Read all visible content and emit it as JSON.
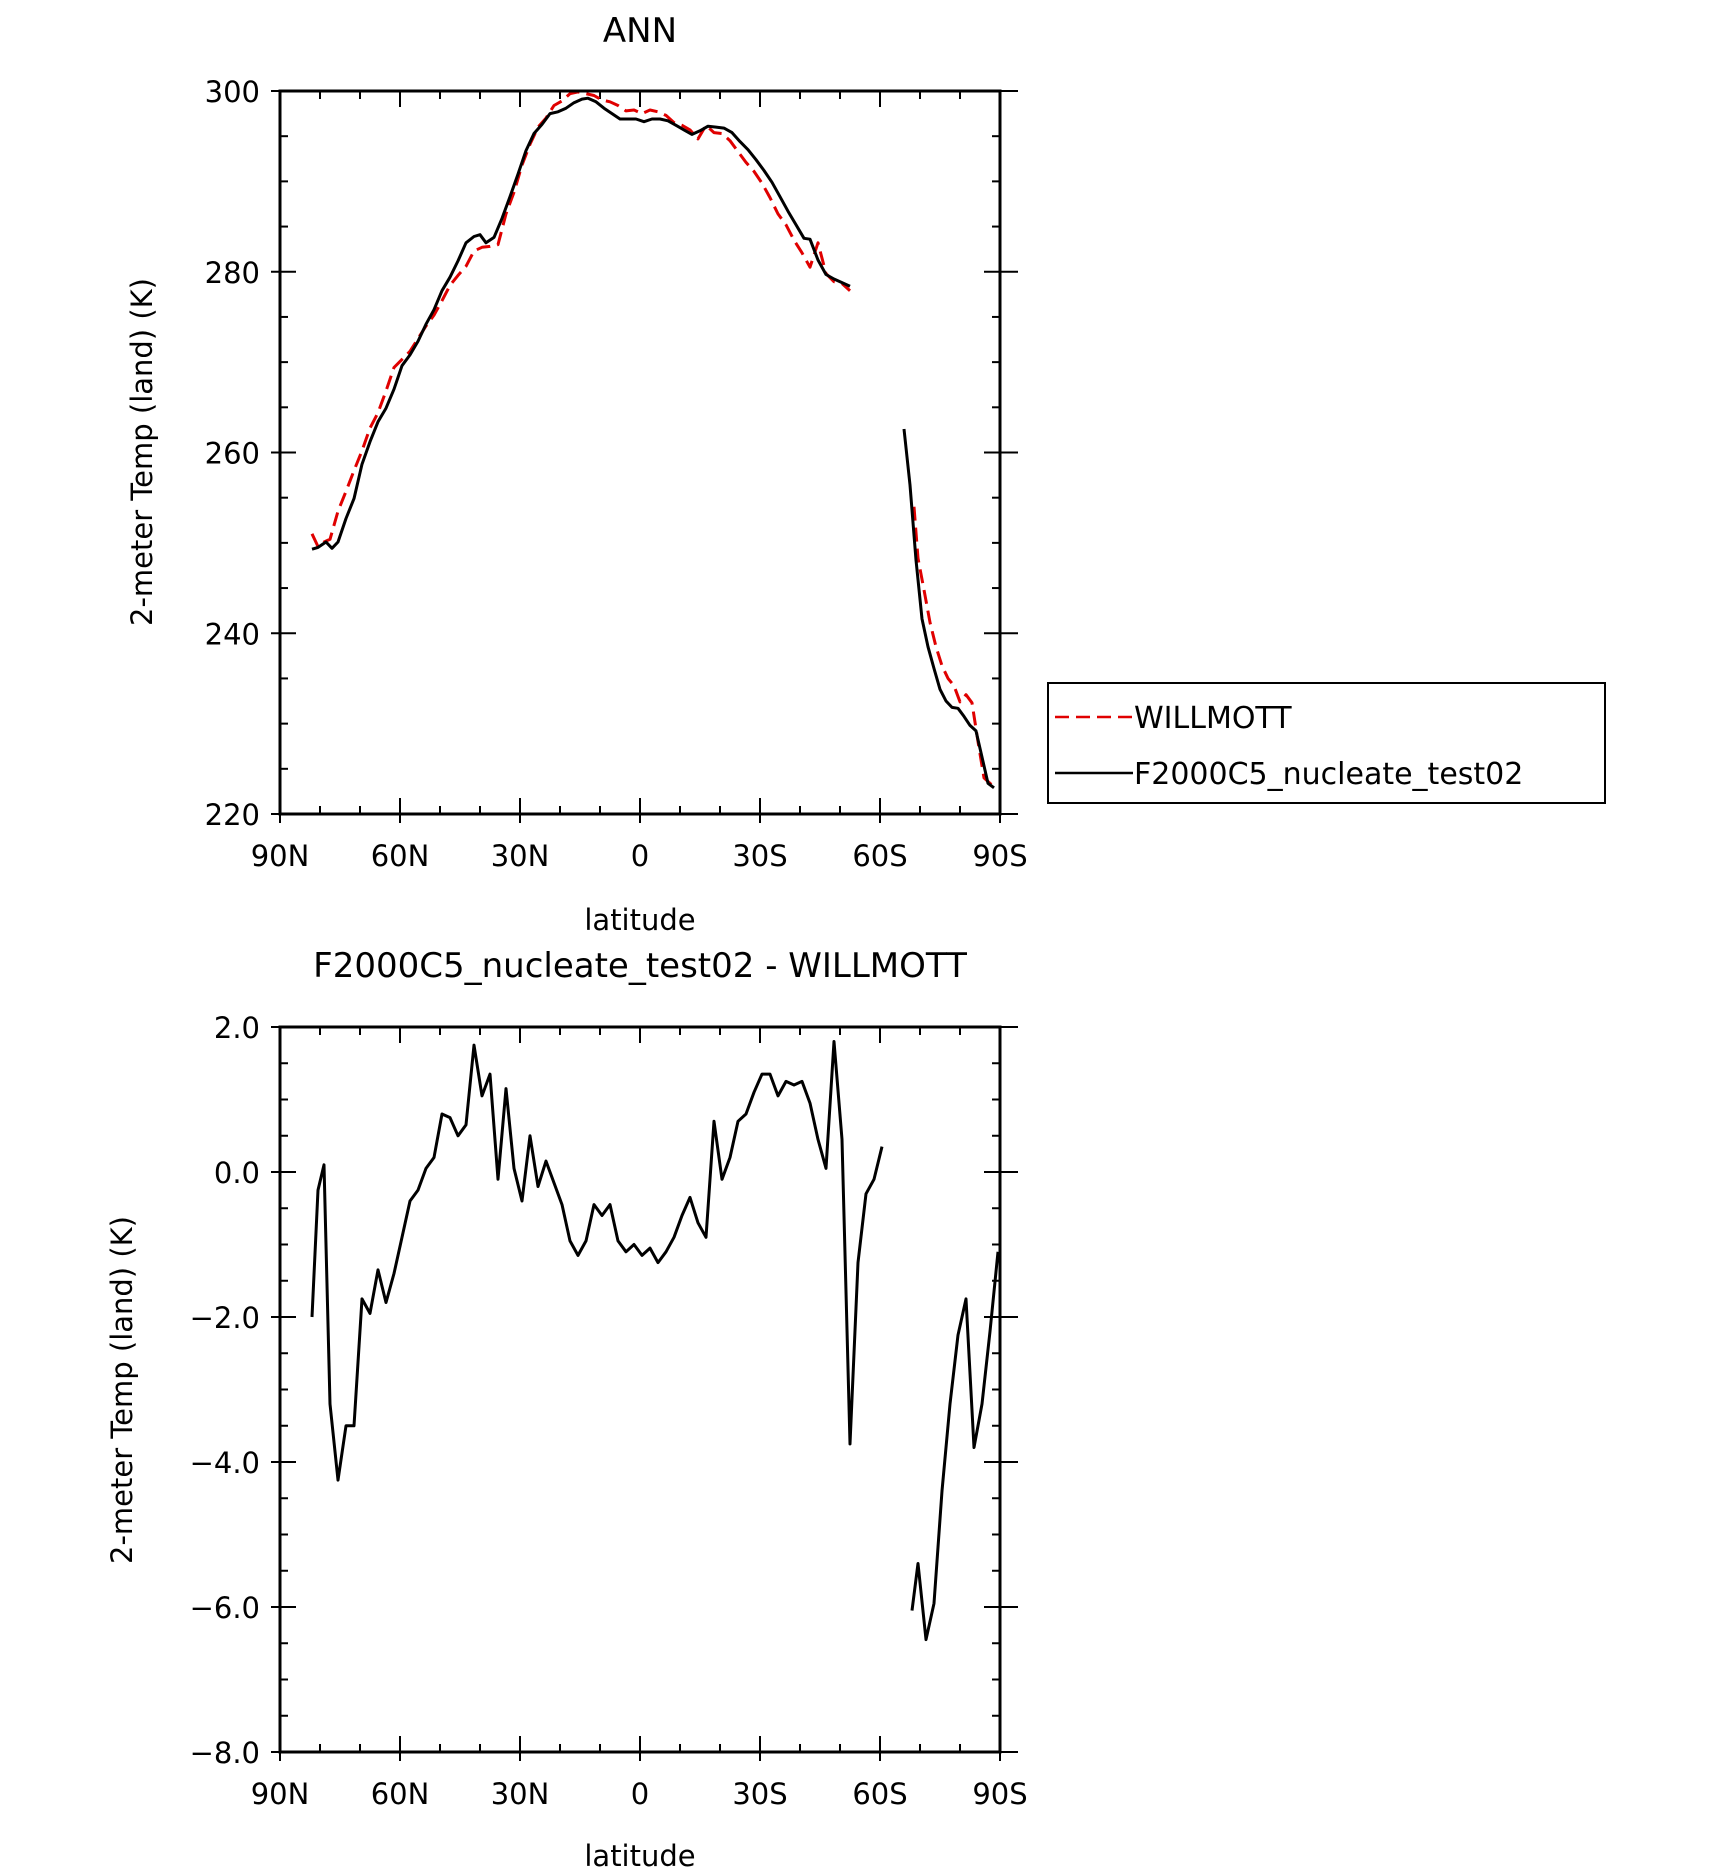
{
  "chart_data": [
    {
      "type": "line",
      "title": "ANN",
      "xlabel": "latitude",
      "ylabel": "2-meter Temp (land) (K)",
      "xlim": [
        90,
        -90
      ],
      "ylim": [
        220,
        300
      ],
      "x_ticks": [
        90,
        60,
        30,
        0,
        -30,
        -60,
        -90
      ],
      "x_tick_labels": [
        "90N",
        "60N",
        "30N",
        "0",
        "30S",
        "60S",
        "90S"
      ],
      "y_ticks": [
        220,
        240,
        260,
        280,
        300
      ],
      "y_tick_labels": [
        "220",
        "240",
        "260",
        "280",
        "300"
      ],
      "grid": false,
      "legend": "right",
      "series": [
        {
          "name": "WILLMOTT",
          "color": "#e00000",
          "style": "dashed",
          "points": [
            [
              82,
              251
            ],
            [
              80.5,
              249.6
            ],
            [
              79,
              250.1
            ],
            [
              77.5,
              250.4
            ],
            [
              75.5,
              253.5
            ],
            [
              73.5,
              255.7
            ],
            [
              71.5,
              258
            ],
            [
              69.5,
              260.2
            ],
            [
              67.5,
              262.7
            ],
            [
              65.5,
              264.4
            ],
            [
              63.5,
              266.8
            ],
            [
              61.5,
              269.4
            ],
            [
              59.5,
              270.3
            ],
            [
              57.5,
              271.2
            ],
            [
              55.5,
              272.6
            ],
            [
              53.5,
              274
            ],
            [
              51.5,
              275.2
            ],
            [
              49.5,
              276.8
            ],
            [
              47.5,
              278.5
            ],
            [
              45.5,
              279.6
            ],
            [
              43.5,
              280.6
            ],
            [
              41.5,
              282.3
            ],
            [
              39.5,
              282.7
            ],
            [
              37.5,
              282.8
            ],
            [
              35.5,
              283
            ],
            [
              33.5,
              286.4
            ],
            [
              31.5,
              288.8
            ],
            [
              29.5,
              291.8
            ],
            [
              27.5,
              294.1
            ],
            [
              25.5,
              296
            ],
            [
              23.5,
              297
            ],
            [
              21.5,
              298.4
            ],
            [
              19.5,
              298.9
            ],
            [
              17.5,
              299.7
            ],
            [
              15.5,
              299.9
            ],
            [
              13.5,
              299.7
            ],
            [
              11.5,
              299.5
            ],
            [
              9.5,
              299
            ],
            [
              7.5,
              298.8
            ],
            [
              5.5,
              298.4
            ],
            [
              3.5,
              297.8
            ],
            [
              1.5,
              297.9
            ],
            [
              -0.5,
              297.5
            ],
            [
              -2.5,
              297.9
            ],
            [
              -4.5,
              297.7
            ],
            [
              -6.5,
              297.3
            ],
            [
              -8.5,
              296.5
            ],
            [
              -10.5,
              296.2
            ],
            [
              -12.5,
              295.7
            ],
            [
              -14.5,
              294.7
            ],
            [
              -16.5,
              296.2
            ],
            [
              -18.5,
              295.4
            ],
            [
              -20.5,
              295.3
            ],
            [
              -22.5,
              294.5
            ],
            [
              -24.5,
              293.3
            ],
            [
              -26.5,
              292.1
            ],
            [
              -28.5,
              291.1
            ],
            [
              -30.5,
              289.8
            ],
            [
              -32.5,
              288.2
            ],
            [
              -34.5,
              286.4
            ],
            [
              -36.5,
              285.2
            ],
            [
              -38.5,
              283.5
            ],
            [
              -40.5,
              282.1
            ],
            [
              -42.5,
              280.5
            ],
            [
              -44.5,
              283.2
            ],
            [
              -46.5,
              279.8
            ],
            [
              -48.5,
              278.9
            ],
            [
              -50.5,
              278.7
            ],
            [
              -52.5,
              277.9
            ],
            null,
            [
              -68.5,
              254
            ],
            [
              -69.5,
              248.3
            ],
            [
              -71,
              244.8
            ],
            [
              -72.5,
              241.2
            ],
            [
              -74,
              238.5
            ],
            [
              -75.5,
              236.4
            ],
            [
              -77,
              235
            ],
            [
              -78.5,
              234.2
            ],
            [
              -80,
              232.4
            ],
            [
              -81.5,
              233.2
            ],
            [
              -83,
              232.3
            ],
            [
              -84.5,
              228
            ],
            [
              -86,
              224
            ],
            [
              -88,
              223.2
            ]
          ]
        },
        {
          "name": "F2000C5_nucleate_test02",
          "color": "#000000",
          "style": "solid",
          "points": [
            [
              82,
              249.3
            ],
            [
              80.5,
              249.5
            ],
            [
              78.5,
              250.1
            ],
            [
              77,
              249.4
            ],
            [
              75.5,
              250.1
            ],
            [
              73.5,
              252.7
            ],
            [
              71.5,
              254.9
            ],
            [
              69.5,
              258.7
            ],
            [
              67.5,
              261.2
            ],
            [
              65.5,
              263.4
            ],
            [
              63.5,
              264.9
            ],
            [
              61.5,
              267
            ],
            [
              59.5,
              269.6
            ],
            [
              57.5,
              270.8
            ],
            [
              55.5,
              272.3
            ],
            [
              53.5,
              274.2
            ],
            [
              51.5,
              275.8
            ],
            [
              49.5,
              277.9
            ],
            [
              47.5,
              279.4
            ],
            [
              45.5,
              281.2
            ],
            [
              43.5,
              283.2
            ],
            [
              41.5,
              283.9
            ],
            [
              40,
              284.1
            ],
            [
              38.5,
              283.2
            ],
            [
              36.5,
              283.8
            ],
            [
              34.5,
              285.9
            ],
            [
              32.5,
              288.3
            ],
            [
              30.5,
              290.8
            ],
            [
              28.5,
              293.4
            ],
            [
              26.5,
              295.3
            ],
            [
              24.5,
              296.3
            ],
            [
              22.5,
              297.5
            ],
            [
              20.5,
              297.7
            ],
            [
              18.5,
              298.1
            ],
            [
              16.5,
              298.7
            ],
            [
              14.5,
              299.1
            ],
            [
              13,
              299.2
            ],
            [
              11,
              298.8
            ],
            [
              9,
              298.1
            ],
            [
              7,
              297.5
            ],
            [
              5,
              296.9
            ],
            [
              3,
              296.9
            ],
            [
              1,
              296.9
            ],
            [
              -1,
              296.6
            ],
            [
              -3,
              296.9
            ],
            [
              -5,
              296.9
            ],
            [
              -7,
              296.7
            ],
            [
              -9,
              296.2
            ],
            [
              -11,
              295.7
            ],
            [
              -13,
              295.2
            ],
            [
              -15,
              295.6
            ],
            [
              -17,
              296.1
            ],
            [
              -19,
              296
            ],
            [
              -21,
              295.9
            ],
            [
              -23,
              295.4
            ],
            [
              -25,
              294.4
            ],
            [
              -27,
              293.5
            ],
            [
              -29,
              292.4
            ],
            [
              -31,
              291.2
            ],
            [
              -33,
              289.9
            ],
            [
              -35,
              288.3
            ],
            [
              -37,
              286.7
            ],
            [
              -39,
              285.2
            ],
            [
              -41,
              283.7
            ],
            [
              -42.5,
              283.6
            ],
            [
              -44.5,
              281.3
            ],
            [
              -46.5,
              279.7
            ],
            [
              -48.5,
              279.2
            ],
            [
              -50.5,
              278.8
            ],
            [
              -52.5,
              278.4
            ],
            null,
            [
              -66,
              262.6
            ],
            [
              -67.5,
              256.4
            ],
            [
              -69,
              248.1
            ],
            [
              -70.5,
              241.6
            ],
            [
              -72,
              238.5
            ],
            [
              -73.5,
              236.1
            ],
            [
              -75,
              233.8
            ],
            [
              -76.5,
              232.5
            ],
            [
              -78,
              231.8
            ],
            [
              -79.5,
              231.7
            ],
            [
              -81,
              230.8
            ],
            [
              -82.5,
              229.8
            ],
            [
              -84,
              229.2
            ],
            [
              -85.5,
              226.3
            ],
            [
              -87,
              223.4
            ],
            [
              -88.5,
              222.9
            ]
          ]
        }
      ]
    },
    {
      "type": "line",
      "title": "F2000C5_nucleate_test02 - WILLMOTT",
      "xlabel": "latitude",
      "ylabel": "2-meter Temp (land) (K)",
      "xlim": [
        90,
        -90
      ],
      "ylim": [
        -8,
        2
      ],
      "x_ticks": [
        90,
        60,
        30,
        0,
        -30,
        -60,
        -90
      ],
      "x_tick_labels": [
        "90N",
        "60N",
        "30N",
        "0",
        "30S",
        "60S",
        "90S"
      ],
      "y_ticks": [
        -8,
        -6,
        -4,
        -2,
        0,
        2
      ],
      "y_tick_labels": [
        "-8.0",
        "-6.0",
        "-4.0",
        "-2.0",
        "0.0",
        "2.0"
      ],
      "grid": false,
      "series": [
        {
          "color": "#000000",
          "style": "solid",
          "points": [
            [
              82,
              -2
            ],
            [
              80.5,
              -0.25
            ],
            [
              79,
              0.1
            ],
            [
              77.5,
              -3.2
            ],
            [
              75.5,
              -4.25
            ],
            [
              73.5,
              -3.5
            ],
            [
              71.5,
              -3.5
            ],
            [
              69.5,
              -1.75
            ],
            [
              67.5,
              -1.95
            ],
            [
              65.5,
              -1.35
            ],
            [
              63.5,
              -1.8
            ],
            [
              61.5,
              -1.4
            ],
            [
              59.5,
              -0.9
            ],
            [
              57.5,
              -0.4
            ],
            [
              55.5,
              -0.25
            ],
            [
              53.5,
              0.05
            ],
            [
              51.5,
              0.2
            ],
            [
              49.5,
              0.8
            ],
            [
              47.5,
              0.75
            ],
            [
              45.5,
              0.5
            ],
            [
              43.5,
              0.65
            ],
            [
              41.5,
              1.75
            ],
            [
              39.5,
              1.05
            ],
            [
              37.5,
              1.35
            ],
            [
              35.5,
              -0.1
            ],
            [
              33.5,
              1.15
            ],
            [
              31.5,
              0.05
            ],
            [
              29.5,
              -0.4
            ],
            [
              27.5,
              0.5
            ],
            [
              25.5,
              -0.2
            ],
            [
              23.5,
              0.15
            ],
            [
              21.5,
              -0.15
            ],
            [
              19.5,
              -0.45
            ],
            [
              17.5,
              -0.95
            ],
            [
              15.5,
              -1.15
            ],
            [
              13.5,
              -0.95
            ],
            [
              11.5,
              -0.45
            ],
            [
              9.5,
              -0.6
            ],
            [
              7.5,
              -0.45
            ],
            [
              5.5,
              -0.95
            ],
            [
              3.5,
              -1.1
            ],
            [
              1.5,
              -1
            ],
            [
              -0.5,
              -1.15
            ],
            [
              -2.5,
              -1.05
            ],
            [
              -4.5,
              -1.25
            ],
            [
              -6.5,
              -1.1
            ],
            [
              -8.5,
              -0.9
            ],
            [
              -10.5,
              -0.6
            ],
            [
              -12.5,
              -0.35
            ],
            [
              -14.5,
              -0.7
            ],
            [
              -16.5,
              -0.9
            ],
            [
              -18.5,
              0.7
            ],
            [
              -20.5,
              -0.1
            ],
            [
              -22.5,
              0.2
            ],
            [
              -24.5,
              0.7
            ],
            [
              -26.5,
              0.8
            ],
            [
              -28.5,
              1.1
            ],
            [
              -30.5,
              1.35
            ],
            [
              -32.5,
              1.35
            ],
            [
              -34.5,
              1.05
            ],
            [
              -36.5,
              1.25
            ],
            [
              -38.5,
              1.2
            ],
            [
              -40.5,
              1.25
            ],
            [
              -42.5,
              0.95
            ],
            [
              -44.5,
              0.45
            ],
            [
              -46.5,
              0.05
            ],
            [
              -48.5,
              1.8
            ],
            [
              -50.5,
              0.45
            ],
            [
              -52.5,
              -3.75
            ],
            [
              -54.5,
              -1.25
            ],
            [
              -56.5,
              -0.3
            ],
            [
              -58.5,
              -0.1
            ],
            [
              -60.5,
              0.35
            ],
            null,
            [
              -68,
              -6.05
            ],
            [
              -69.5,
              -5.4
            ],
            [
              -71.5,
              -6.45
            ],
            [
              -73.5,
              -5.95
            ],
            [
              -75.5,
              -4.4
            ],
            [
              -77.5,
              -3.2
            ],
            [
              -79.5,
              -2.25
            ],
            [
              -81.5,
              -1.75
            ],
            [
              -83.5,
              -3.8
            ],
            [
              -85.5,
              -3.2
            ],
            [
              -87.5,
              -2.2
            ],
            [
              -89.5,
              -1.1
            ]
          ]
        }
      ]
    }
  ]
}
